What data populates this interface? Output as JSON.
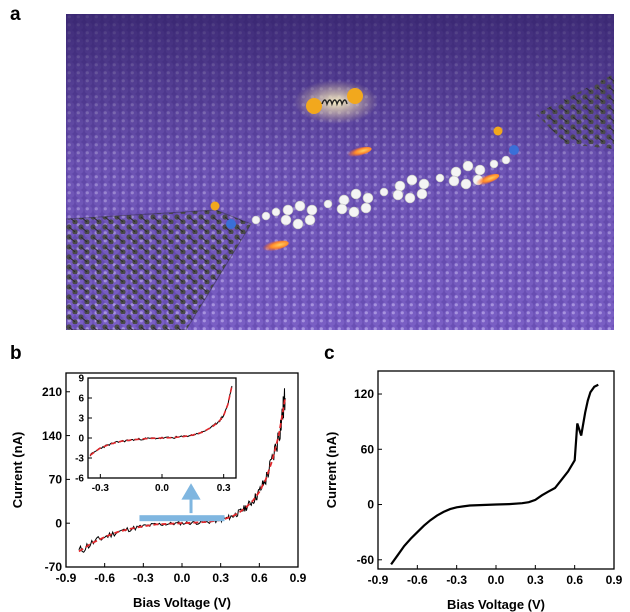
{
  "figure": {
    "panel_a": {
      "letter": "a"
    },
    "panel_b": {
      "letter": "b"
    },
    "panel_c": {
      "letter": "c"
    }
  },
  "colors": {
    "surface": "#6a4fb5",
    "surface_dark": "#3c2679",
    "graphene": "#3a3a3a",
    "molecule": "#f4f4f4",
    "gold_atom": "#f2a81d",
    "nitrogen": "#3a6fd8",
    "fit_line": "#e0272b",
    "arrow_blue": "#7fb6e0"
  },
  "chart_data": [
    {
      "panel": "b",
      "type": "line",
      "xlabel": "Bias Voltage (V)",
      "ylabel": "Current (nA)",
      "xlim": [
        -0.9,
        0.9
      ],
      "ylim": [
        -70,
        240
      ],
      "xticks": [
        -0.9,
        -0.6,
        -0.3,
        0.0,
        0.3,
        0.6,
        0.9
      ],
      "xtick_labels": [
        "-0.9",
        "-0.6",
        "-0.3",
        "0.0",
        "0.3",
        "0.6",
        "0.9"
      ],
      "yticks": [
        -70,
        0,
        70,
        140,
        210
      ],
      "ytick_labels": [
        "-70",
        "0",
        "70",
        "140",
        "210"
      ],
      "series": [
        {
          "x": [
            -0.8,
            -0.7,
            -0.6,
            -0.5,
            -0.4,
            -0.3,
            -0.2,
            -0.1,
            0.0,
            0.1,
            0.2,
            0.3,
            0.35,
            0.4,
            0.45,
            0.5,
            0.55,
            0.6,
            0.65,
            0.7,
            0.75,
            0.78,
            0.8
          ],
          "y": [
            -45,
            -32,
            -22,
            -14,
            -9,
            -5,
            -2,
            -1,
            0,
            1,
            2,
            5,
            8,
            12,
            18,
            26,
            36,
            50,
            70,
            100,
            140,
            175,
            200
          ]
        }
      ],
      "inset": {
        "xlim": [
          -0.36,
          0.36
        ],
        "ylim": [
          -6,
          9
        ],
        "xticks": [
          -0.3,
          0.0,
          0.3
        ],
        "xtick_labels": [
          "-0.3",
          "0.0",
          "0.3"
        ],
        "yticks": [
          -6,
          -3,
          0,
          3,
          6,
          9
        ],
        "ytick_labels": [
          "-6",
          "-3",
          "0",
          "3",
          "6",
          "9"
        ],
        "series": [
          {
            "x": [
              -0.35,
              -0.3,
              -0.25,
              -0.2,
              -0.15,
              -0.1,
              -0.05,
              0.0,
              0.05,
              0.1,
              0.15,
              0.2,
              0.25,
              0.28,
              0.3,
              0.32,
              0.34
            ],
            "y": [
              -2.6,
              -1.5,
              -0.9,
              -0.5,
              -0.3,
              -0.15,
              -0.05,
              0,
              0.05,
              0.2,
              0.45,
              0.9,
              1.8,
              2.6,
              3.4,
              5.0,
              7.8
            ]
          }
        ]
      }
    },
    {
      "panel": "c",
      "type": "line",
      "xlabel": "Bias Voltage (V)",
      "ylabel": "Current (nA)",
      "xlim": [
        -0.9,
        0.9
      ],
      "ylim": [
        -70,
        145
      ],
      "xticks": [
        -0.9,
        -0.6,
        -0.3,
        0.0,
        0.3,
        0.6,
        0.9
      ],
      "xtick_labels": [
        "-0.9",
        "-0.6",
        "-0.3",
        "0.0",
        "0.3",
        "0.6",
        "0.9"
      ],
      "yticks": [
        -60,
        0,
        60,
        120
      ],
      "ytick_labels": [
        "-60",
        "0",
        "60",
        "120"
      ],
      "series": [
        {
          "x": [
            -0.8,
            -0.75,
            -0.7,
            -0.65,
            -0.6,
            -0.55,
            -0.5,
            -0.45,
            -0.4,
            -0.35,
            -0.3,
            -0.25,
            -0.2,
            -0.1,
            0.0,
            0.1,
            0.2,
            0.25,
            0.3,
            0.35,
            0.4,
            0.45,
            0.5,
            0.55,
            0.6,
            0.62,
            0.65,
            0.68,
            0.7,
            0.72,
            0.75,
            0.78
          ],
          "y": [
            -65,
            -55,
            -45,
            -37,
            -30,
            -23,
            -17,
            -12,
            -8,
            -5,
            -3,
            -2,
            -1,
            -0.5,
            0,
            0.5,
            1.5,
            2.5,
            5,
            10,
            14,
            18,
            27,
            36,
            48,
            88,
            75,
            100,
            113,
            122,
            128,
            130
          ]
        }
      ]
    }
  ]
}
